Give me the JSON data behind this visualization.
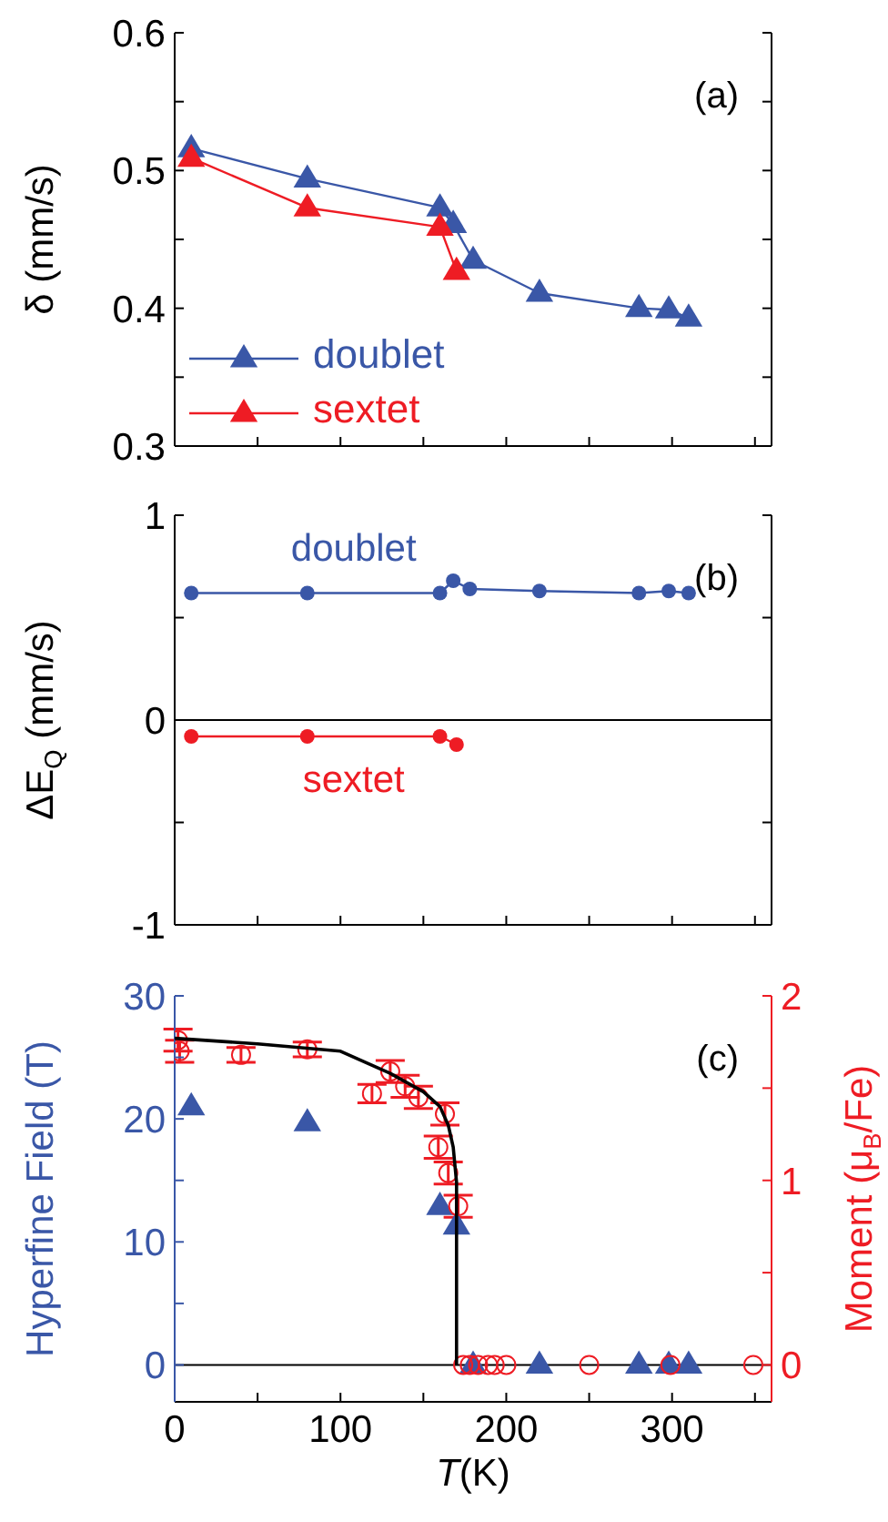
{
  "chart_data": [
    {
      "type": "line",
      "annotations": [
        "(a)"
      ],
      "ylabel": "δ (mm/s)",
      "xlim": [
        0,
        360
      ],
      "xticks": [
        0,
        {
          "value": 50,
          "label": null
        },
        100,
        {
          "value": 150,
          "label": null
        },
        200,
        {
          "value": 250,
          "label": null
        },
        300,
        {
          "value": 350,
          "label": null
        }
      ],
      "ylim": [
        0.3,
        0.6
      ],
      "yticks": [
        0.3,
        {
          "value": 0.35,
          "label": null
        },
        0.4,
        {
          "value": 0.45,
          "label": null
        },
        0.5,
        {
          "value": 0.55,
          "label": null
        },
        0.6
      ],
      "tick_labels": "y",
      "legend": "bottom left",
      "grid": false,
      "marker": "triangle",
      "line_style": "solid",
      "series": [
        {
          "name": "doublet",
          "color": "#3a57a7",
          "x": [
            10,
            80,
            160,
            168,
            180,
            220,
            280,
            298,
            310
          ],
          "values": [
            0.516,
            0.494,
            0.473,
            0.461,
            0.435,
            0.411,
            0.4,
            0.399,
            0.393
          ]
        },
        {
          "name": "sextet",
          "color": "#ee1c24",
          "x": [
            10,
            80,
            160,
            170
          ],
          "values": [
            0.509,
            0.473,
            0.459,
            0.427
          ]
        }
      ]
    },
    {
      "type": "line",
      "annotations": [
        "(b)"
      ],
      "ylabel": "ΔE$_{Q}$ (mm/s)",
      "xlim": [
        0,
        360
      ],
      "xticks": [
        0,
        {
          "value": 50,
          "label": null
        },
        100,
        {
          "value": 150,
          "label": null
        },
        200,
        {
          "value": 250,
          "label": null
        },
        300,
        {
          "value": 350,
          "label": null
        }
      ],
      "ylim": [
        -1,
        1
      ],
      "yticks": [
        -1,
        {
          "value": -0.5,
          "label": null
        },
        0,
        {
          "value": 0.5,
          "label": null
        },
        1
      ],
      "tick_labels": "y",
      "legend": false,
      "grid": false,
      "marker": "circle",
      "line_style": "solid",
      "ref_lines": [
        {
          "axis": "y",
          "value": 0,
          "color": "#000000"
        }
      ],
      "series": [
        {
          "name": "doublet",
          "color": "#3a57a7",
          "x": [
            10,
            80,
            160,
            168,
            178,
            220,
            280,
            298,
            310
          ],
          "values": [
            0.62,
            0.62,
            0.62,
            0.68,
            0.64,
            0.63,
            0.62,
            0.63,
            0.62
          ]
        },
        {
          "name": "sextet",
          "color": "#ee1c24",
          "x": [
            10,
            80,
            160,
            170
          ],
          "values": [
            -0.08,
            -0.08,
            -0.08,
            -0.12
          ]
        }
      ]
    },
    {
      "type": "scatter",
      "annotations": [
        "(c)"
      ],
      "xlabel": "T(K)",
      "ylabel": "Hyperfine Field (T)",
      "y2label": "Moment (μ$_{B}$/Fe)",
      "xlim": [
        0,
        360
      ],
      "xticks": [
        0,
        {
          "value": 50,
          "label": null
        },
        100,
        {
          "value": 150,
          "label": null
        },
        200,
        {
          "value": 250,
          "label": null
        },
        300,
        {
          "value": 350,
          "label": null
        }
      ],
      "ylim": [
        -3,
        30
      ],
      "yticks": [
        0,
        {
          "value": 5,
          "label": null
        },
        10,
        {
          "value": 15,
          "label": null
        },
        20,
        {
          "value": 25,
          "label": null
        },
        30
      ],
      "y2lim": [
        -0.2,
        2
      ],
      "y2ticks": [
        0,
        {
          "value": 0.5,
          "label": null
        },
        1,
        {
          "value": 1.5,
          "label": null
        },
        2
      ],
      "legend": false,
      "grid": false,
      "ref_lines": [
        {
          "axis": "y",
          "value": 0,
          "color": "#000000"
        }
      ],
      "series": [
        {
          "type": "scatter",
          "marker": "triangle",
          "color": "#3a57a7",
          "x": [
            10,
            80,
            160,
            170,
            180,
            220,
            280,
            298,
            310
          ],
          "values": [
            21,
            19.7,
            12.9,
            11.3,
            0,
            0,
            0,
            0,
            0
          ]
        },
        {
          "type": "scatter",
          "marker": "circle",
          "axis": "y2",
          "color": "#ee1c24",
          "x": [
            2,
            3,
            40,
            80,
            119,
            130,
            139,
            147,
            159,
            163,
            165,
            171,
            174,
            178,
            183,
            189,
            193,
            200,
            250,
            299,
            349
          ],
          "values": [
            1.76,
            1.7,
            1.68,
            1.71,
            1.47,
            1.59,
            1.51,
            1.45,
            1.18,
            1.36,
            1.04,
            0.86,
            0,
            0,
            0,
            0,
            0,
            0,
            0,
            0,
            0
          ],
          "errors": [
            0.06,
            0.06,
            0.04,
            0.04,
            0.05,
            0.06,
            0.06,
            0.06,
            0.06,
            0.06,
            0.06,
            0.06,
            null,
            null,
            null,
            null,
            null,
            null,
            null,
            null,
            null
          ]
        },
        {
          "type": "line",
          "marker": "none",
          "axis": "y2",
          "color": "#000000",
          "x": [
            0,
            50,
            100,
            130,
            150,
            160,
            165,
            168,
            170,
            170
          ],
          "values": [
            1.77,
            1.74,
            1.7,
            1.58,
            1.48,
            1.4,
            1.3,
            1.18,
            0.99,
            0
          ]
        }
      ]
    }
  ]
}
